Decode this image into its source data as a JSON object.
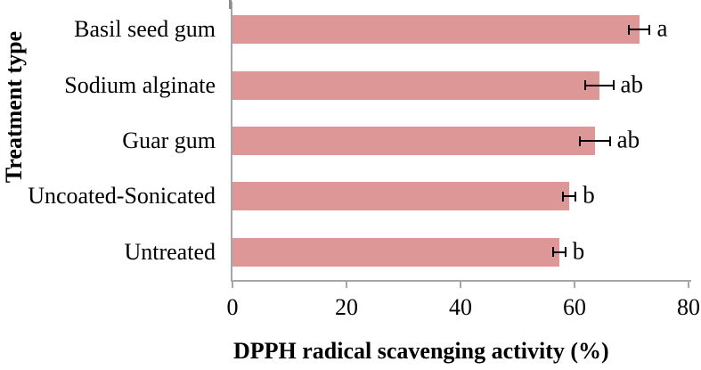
{
  "chart_data": {
    "type": "bar",
    "orientation": "horizontal",
    "title": "",
    "xlabel": "DPPH radical scavenging activity (%)",
    "ylabel": "Treatment type",
    "categories": [
      "Basil seed gum",
      "Sodium alginate",
      "Guar gum",
      "Uncoated-Sonicated",
      "Untreated"
    ],
    "values": [
      71.4,
      64.3,
      63.6,
      59.1,
      57.3
    ],
    "errors": [
      1.8,
      2.5,
      2.6,
      1.1,
      1.1
    ],
    "sig_letters": [
      "a",
      "ab",
      "ab",
      "b",
      "b"
    ],
    "xlim": [
      0,
      80
    ],
    "xticks": [
      0,
      20,
      40,
      60,
      80
    ],
    "grid": false,
    "legend": "none",
    "bar_color": "#DE9797",
    "axis_color": "#A6A6A6",
    "axis_top_tick_color": "#8C8C8C",
    "error_bar_color": "#000000",
    "text_color": "#000000"
  }
}
